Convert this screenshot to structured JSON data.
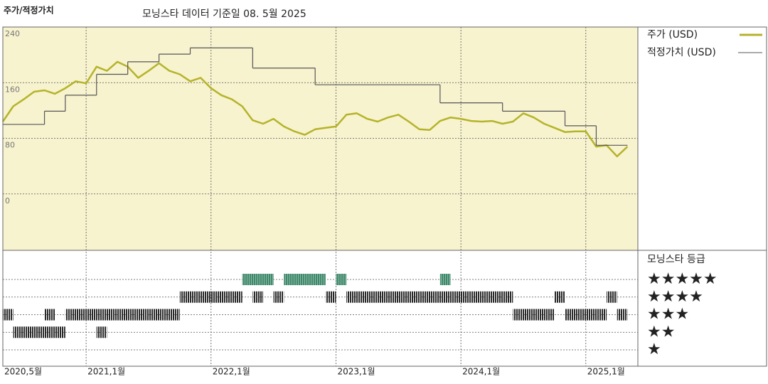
{
  "chart_data": {
    "type": "line",
    "title": "주가/적정가치",
    "subtitle": "모닝스타 데이터 기준일 08. 5월 2025",
    "xlim": [
      "2020-05",
      "2025-06"
    ],
    "xticks": [
      {
        "value": "2020-05",
        "label": "2020,5월"
      },
      {
        "value": "2021-01",
        "label": "2021,1월"
      },
      {
        "value": "2022-01",
        "label": "2022,1월"
      },
      {
        "value": "2023-01",
        "label": "2023,1월"
      },
      {
        "value": "2024-01",
        "label": "2024,1월"
      },
      {
        "value": "2025-01",
        "label": "2025,1월"
      }
    ],
    "ylim": [
      -81,
      240
    ],
    "yticks": [
      0,
      80,
      160,
      240
    ],
    "grid": true,
    "series": [
      {
        "name": "주가 (USD)",
        "color": "#b5b32a",
        "style": "line",
        "x": [
          "2020-05",
          "2020-06",
          "2020-07",
          "2020-08",
          "2020-09",
          "2020-10",
          "2020-11",
          "2020-12",
          "2021-01",
          "2021-02",
          "2021-03",
          "2021-04",
          "2021-05",
          "2021-06",
          "2021-07",
          "2021-08",
          "2021-09",
          "2021-10",
          "2021-11",
          "2021-12",
          "2022-01",
          "2022-02",
          "2022-03",
          "2022-04",
          "2022-05",
          "2022-06",
          "2022-07",
          "2022-08",
          "2022-09",
          "2022-10",
          "2022-11",
          "2022-12",
          "2023-01",
          "2023-02",
          "2023-03",
          "2023-04",
          "2023-05",
          "2023-06",
          "2023-07",
          "2023-08",
          "2023-09",
          "2023-10",
          "2023-11",
          "2023-12",
          "2024-01",
          "2024-02",
          "2024-03",
          "2024-04",
          "2024-05",
          "2024-06",
          "2024-07",
          "2024-08",
          "2024-09",
          "2024-10",
          "2024-11",
          "2024-12",
          "2025-01",
          "2025-02",
          "2025-03",
          "2025-04",
          "2025-05"
        ],
        "values": [
          104,
          126,
          136,
          147,
          149,
          144,
          152,
          162,
          159,
          183,
          177,
          190,
          183,
          167,
          177,
          188,
          177,
          172,
          162,
          167,
          152,
          142,
          136,
          126,
          106,
          101,
          108,
          97,
          90,
          85,
          93,
          95,
          97,
          114,
          116,
          108,
          104,
          110,
          114,
          104,
          93,
          92,
          105,
          110,
          108,
          105,
          104,
          105,
          101,
          104,
          116,
          110,
          101,
          95,
          89,
          90,
          90,
          68,
          70,
          54,
          68
        ]
      },
      {
        "name": "적정가치 (USD)",
        "color": "#555555",
        "style": "step",
        "x": [
          "2020-05",
          "2020-09",
          "2020-11",
          "2021-02",
          "2021-05",
          "2021-08",
          "2021-11",
          "2022-05",
          "2022-11",
          "2023-11",
          "2024-05",
          "2024-11",
          "2025-02",
          "2025-05"
        ],
        "values": [
          100,
          119,
          142,
          172,
          190,
          201,
          210,
          181,
          157,
          131,
          119,
          98,
          70,
          70
        ]
      }
    ],
    "rating_title": "모닝스타 등급",
    "rating_labels": [
      "★",
      "★★",
      "★★★",
      "★★★★",
      "★★★★★"
    ],
    "ratings": [
      {
        "start": "2020-05",
        "end": "2020-06",
        "rating": 3
      },
      {
        "start": "2020-06",
        "end": "2020-11",
        "rating": 2
      },
      {
        "start": "2020-09",
        "end": "2020-10",
        "rating": 3
      },
      {
        "start": "2020-11",
        "end": "2021-10",
        "rating": 3
      },
      {
        "start": "2021-02",
        "end": "2021-03",
        "rating": 2
      },
      {
        "start": "2021-10",
        "end": "2022-04",
        "rating": 4
      },
      {
        "start": "2022-04",
        "end": "2022-07",
        "rating": 5
      },
      {
        "start": "2022-05",
        "end": "2022-06",
        "rating": 4
      },
      {
        "start": "2022-07",
        "end": "2022-08",
        "rating": 4
      },
      {
        "start": "2022-08",
        "end": "2022-12",
        "rating": 5
      },
      {
        "start": "2022-12",
        "end": "2023-01",
        "rating": 4
      },
      {
        "start": "2023-01",
        "end": "2023-02",
        "rating": 5
      },
      {
        "start": "2023-02",
        "end": "2024-06",
        "rating": 4
      },
      {
        "start": "2023-11",
        "end": "2023-12",
        "rating": 5
      },
      {
        "start": "2024-06",
        "end": "2024-10",
        "rating": 3
      },
      {
        "start": "2024-10",
        "end": "2024-11",
        "rating": 4
      },
      {
        "start": "2024-11",
        "end": "2025-03",
        "rating": 3
      },
      {
        "start": "2025-03",
        "end": "2025-04",
        "rating": 4
      },
      {
        "start": "2025-04",
        "end": "2025-05",
        "rating": 3
      }
    ],
    "rating_colors": {
      "5": "#3e8a6c",
      "other": "#2a2a2a"
    }
  }
}
